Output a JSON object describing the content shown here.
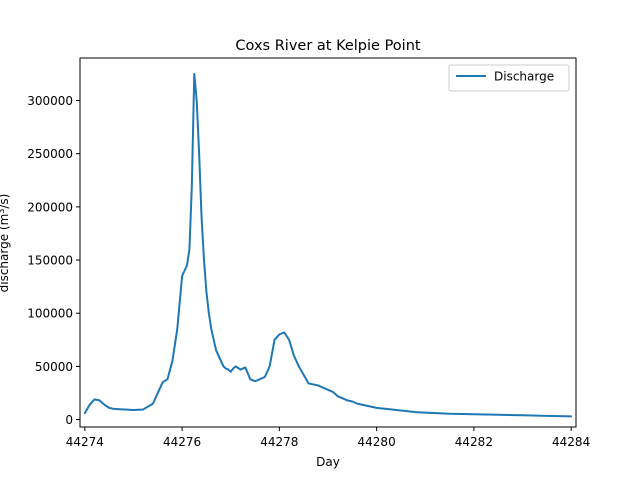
{
  "chart_data": {
    "type": "line",
    "title": "Coxs River at Kelpie Point",
    "xlabel": "Day",
    "ylabel": "discharge (m^3/s)",
    "xlim": [
      44273.9,
      44284.1
    ],
    "ylim": [
      -7000,
      340000
    ],
    "xticks": [
      44274,
      44276,
      44278,
      44280,
      44282,
      44284
    ],
    "yticks": [
      0,
      50000,
      100000,
      150000,
      200000,
      250000,
      300000
    ],
    "grid": false,
    "legend": "top-right",
    "series": [
      {
        "name": "Discharge",
        "color": "#1f77b4",
        "x": [
          44274.0,
          44274.1,
          44274.2,
          44274.3,
          44274.4,
          44274.5,
          44274.6,
          44274.8,
          44275.0,
          44275.2,
          44275.4,
          44275.5,
          44275.6,
          44275.7,
          44275.8,
          44275.9,
          44276.0,
          44276.1,
          44276.15,
          44276.2,
          44276.25,
          44276.3,
          44276.35,
          44276.4,
          44276.45,
          44276.5,
          44276.55,
          44276.6,
          44276.7,
          44276.8,
          44276.85,
          44276.9,
          44276.95,
          44277.0,
          44277.05,
          44277.1,
          44277.2,
          44277.3,
          44277.4,
          44277.45,
          44277.5,
          44277.6,
          44277.7,
          44277.8,
          44277.9,
          44278.0,
          44278.1,
          44278.2,
          44278.3,
          44278.4,
          44278.5,
          44278.55,
          44278.6,
          44278.7,
          44278.8,
          44278.9,
          44279.0,
          44279.1,
          44279.2,
          44279.3,
          44279.4,
          44279.5,
          44279.6,
          44279.8,
          44280.0,
          44280.2,
          44280.4,
          44280.6,
          44280.8,
          44281.0,
          44281.5,
          44282.0,
          44282.5,
          44283.0,
          44283.5,
          44284.0
        ],
        "y": [
          6000,
          14000,
          19000,
          18000,
          14000,
          11000,
          10000,
          9500,
          9000,
          9500,
          15000,
          25000,
          35000,
          38000,
          55000,
          85000,
          135000,
          145000,
          160000,
          220000,
          325000,
          300000,
          250000,
          190000,
          150000,
          120000,
          100000,
          85000,
          65000,
          55000,
          50000,
          48000,
          47000,
          45000,
          48000,
          50000,
          47000,
          49000,
          38000,
          37000,
          36000,
          38000,
          40000,
          50000,
          75000,
          80000,
          82000,
          75000,
          60000,
          50000,
          42000,
          38000,
          34000,
          33000,
          32000,
          30000,
          28000,
          26000,
          22000,
          20000,
          18000,
          17000,
          15000,
          13000,
          11000,
          10000,
          9000,
          8000,
          7000,
          6500,
          5500,
          5000,
          4500,
          4000,
          3500,
          3000
        ]
      }
    ]
  }
}
